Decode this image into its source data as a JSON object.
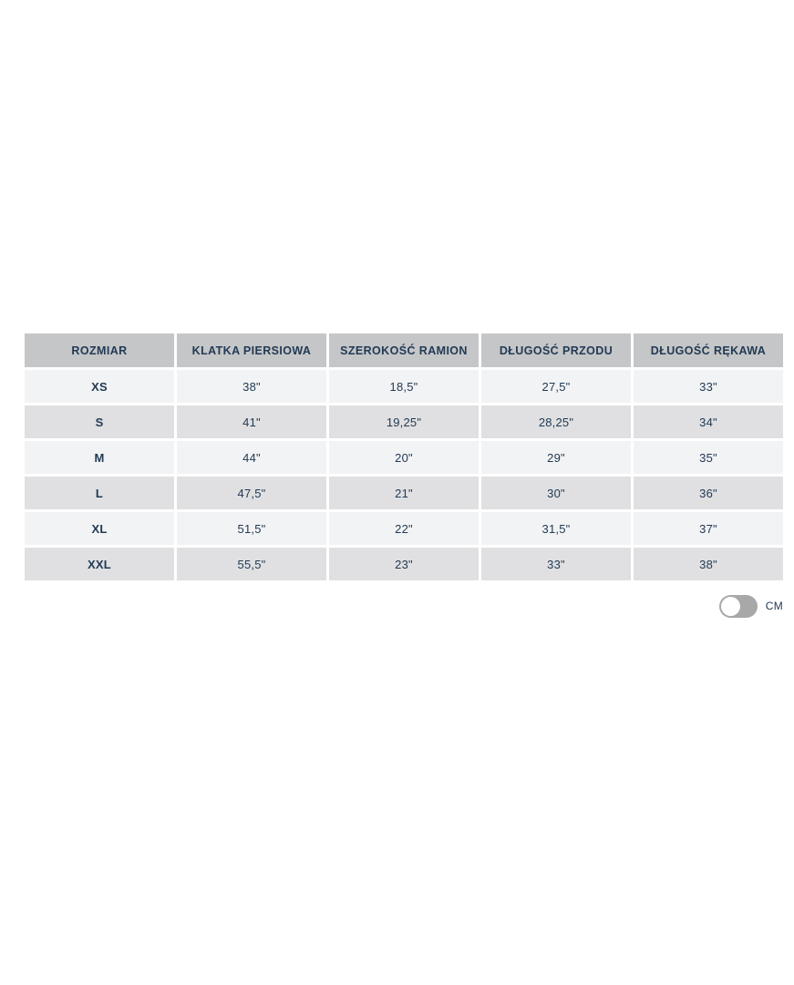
{
  "size_table": {
    "columns": [
      "ROZMIAR",
      "KLATKA PIERSIOWA",
      "SZEROKOŚĆ RAMION",
      "DŁUGOŚĆ PRZODU",
      "DŁUGOŚĆ RĘKAWA"
    ],
    "rows": [
      {
        "size": "XS",
        "values": [
          "38\"",
          "18,5\"",
          "27,5\"",
          "33\""
        ]
      },
      {
        "size": "S",
        "values": [
          "41\"",
          "19,25\"",
          "28,25\"",
          "34\""
        ]
      },
      {
        "size": "M",
        "values": [
          "44\"",
          "20\"",
          "29\"",
          "35\""
        ]
      },
      {
        "size": "L",
        "values": [
          "47,5\"",
          "21\"",
          "30\"",
          "36\""
        ]
      },
      {
        "size": "XL",
        "values": [
          "51,5\"",
          "22\"",
          "31,5\"",
          "37\""
        ]
      },
      {
        "size": "XXL",
        "values": [
          "55,5\"",
          "23\"",
          "33\"",
          "38\""
        ]
      }
    ]
  },
  "unit_toggle": {
    "label": "CM",
    "state": "off"
  },
  "colors": {
    "header_bg": "#c5c6c8",
    "row_light": "#f2f3f4",
    "row_dark": "#e0e0e2",
    "text": "#223a54",
    "toggle_track": "#a8a8a8",
    "toggle_knob": "#ffffff"
  }
}
